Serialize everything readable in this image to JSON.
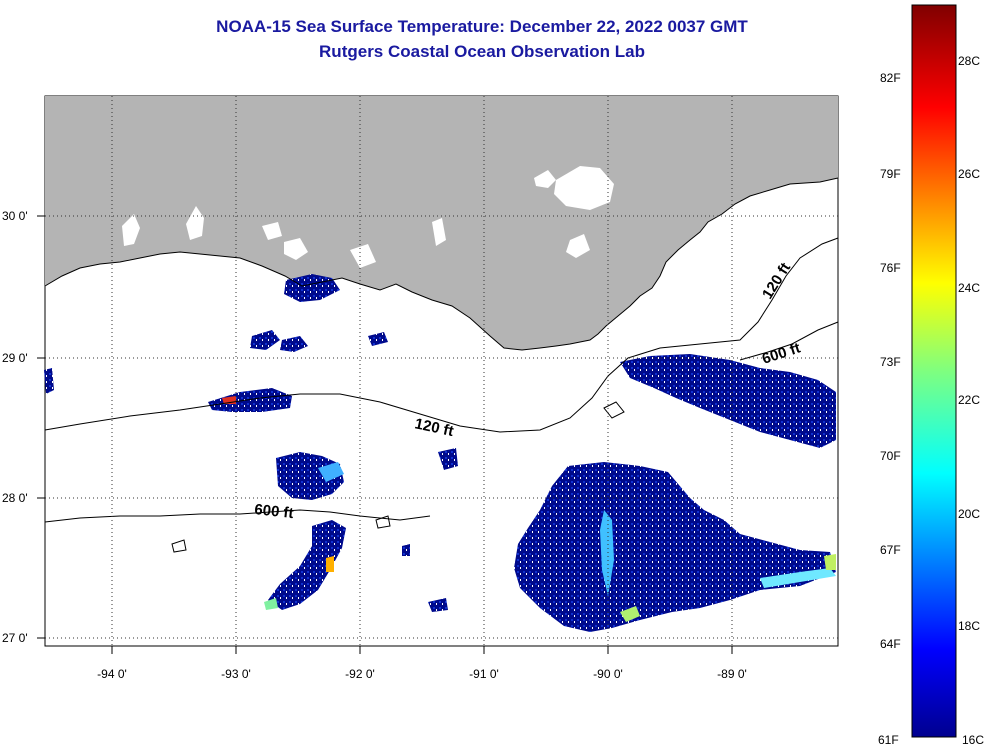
{
  "title": {
    "line1": "NOAA-15 Sea Surface Temperature:  December 22, 2022 0037 GMT",
    "line2": "Rutgers Coastal Ocean Observation Lab"
  },
  "map": {
    "lon_labels": [
      "-94 0'",
      "-93 0'",
      "-92 0'",
      "-91 0'",
      "-90 0'",
      "-89 0'"
    ],
    "lat_labels": [
      "30 0'",
      "29 0'",
      "28 0'",
      "27 0'"
    ],
    "contour_labels": {
      "shelf_120_west": "120 ft",
      "shelf_120_east": "120 ft",
      "slope_600_west": "600 ft",
      "slope_600_east": "600 ft"
    },
    "colors": {
      "land": "#b4b4b4",
      "cold_water": "#000a8c",
      "coastline": "#000000"
    }
  },
  "colorbar": {
    "fahrenheit_labels": [
      "82F",
      "79F",
      "76F",
      "73F",
      "70F",
      "67F",
      "64F",
      "61F"
    ],
    "celsius_labels": [
      "28C",
      "26C",
      "24C",
      "22C",
      "20C",
      "18C",
      "16C"
    ]
  }
}
